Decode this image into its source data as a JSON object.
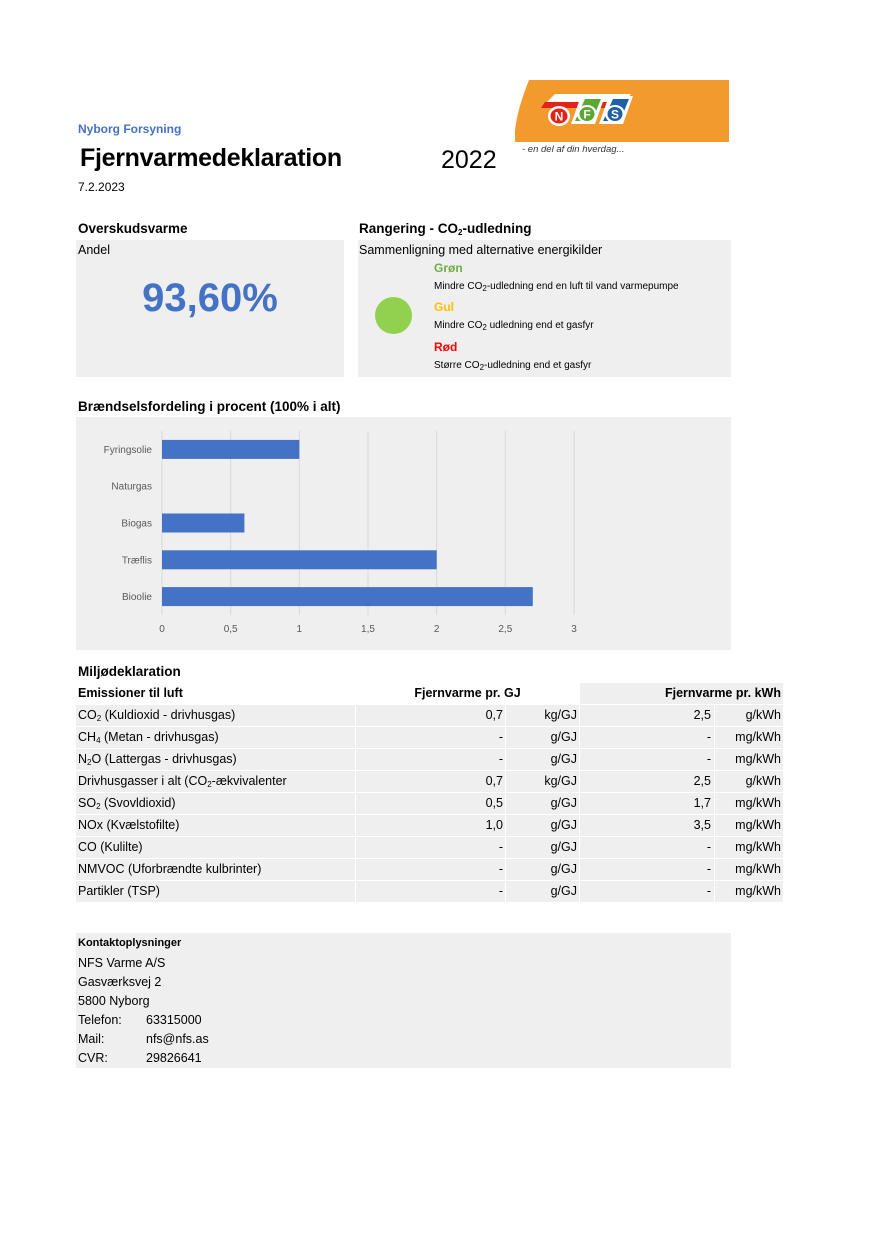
{
  "header": {
    "company": "Nyborg Forsyning",
    "title": "Fjernvarmedeklaration",
    "year": "2022",
    "date": "7.2.2023"
  },
  "logo": {
    "letters": [
      "N",
      "F",
      "S"
    ],
    "tagline": "- en del af din hverdag...",
    "colors": {
      "orange": "#f39a2e",
      "red": "#e2231a",
      "green": "#5aa832",
      "blue": "#1f5fa8"
    }
  },
  "overskud": {
    "heading": "Overskudsvarme",
    "label": "Andel",
    "value": "93,60%"
  },
  "rangering": {
    "heading_pre": "Rangering - CO",
    "heading_sub": "2",
    "heading_post": "-udledning",
    "subheading": "Sammenligning med alternative energikilder",
    "indicator_color": "#92d050",
    "levels": [
      {
        "label": "Grøn",
        "color": "#70ad47",
        "desc_pre": "Mindre CO",
        "desc_sub": "2",
        "desc_post": "-udledning end en luft til vand varmepumpe"
      },
      {
        "label": "Gul",
        "color": "#ffc000",
        "desc_pre": "Mindre CO",
        "desc_sub": "2",
        "desc_post": " udledning end et gasfyr"
      },
      {
        "label": "Rød",
        "color": "#ff0000",
        "desc_pre": "Større CO",
        "desc_sub": "2",
        "desc_post": "-udledning end et gasfyr"
      }
    ]
  },
  "braendsel": {
    "heading": "Brændselsfordeling i procent (100% i alt)"
  },
  "chart_data": {
    "type": "bar",
    "orientation": "horizontal",
    "categories": [
      "Fyringsolie",
      "Naturgas",
      "Biogas",
      "Træflis",
      "Bioolie"
    ],
    "values": [
      1.0,
      0,
      0.6,
      2.0,
      2.7
    ],
    "xlim": [
      0,
      3
    ],
    "xticks": [
      "0",
      "0,5",
      "1",
      "1,5",
      "2",
      "2,5",
      "3"
    ],
    "xtick_values": [
      0,
      0.5,
      1,
      1.5,
      2,
      2.5,
      3
    ],
    "grid": true,
    "bar_color": "#4472c4",
    "grid_color": "#d9d9d9",
    "title": "",
    "xlabel": "",
    "ylabel": ""
  },
  "miljo": {
    "heading": "Miljødeklaration",
    "col_name": "Emissioner til luft",
    "col_gj": "Fjernvarme pr. GJ",
    "col_kwh": "Fjernvarme pr. kWh",
    "rows": [
      {
        "pre": "CO",
        "sub": "2",
        "post": " (Kuldioxid - drivhusgas)",
        "v1": "0,7",
        "u1": "kg/GJ",
        "v2": "2,5",
        "u2": "g/kWh"
      },
      {
        "pre": "CH",
        "sub": "4",
        "post": " (Metan - drivhusgas)",
        "v1": "-",
        "u1": "g/GJ",
        "v2": "-",
        "u2": "mg/kWh"
      },
      {
        "pre": "N",
        "sub": "2",
        "post": "O (Lattergas - drivhusgas)",
        "v1": "-",
        "u1": "g/GJ",
        "v2": "-",
        "u2": "mg/kWh"
      },
      {
        "pre": "Drivhusgasser i alt (CO",
        "sub": "2",
        "post": "-ækvivalenter",
        "v1": "0,7",
        "u1": "kg/GJ",
        "v2": "2,5",
        "u2": "g/kWh"
      },
      {
        "pre": "SO",
        "sub": "2",
        "post": " (Svovldioxid)",
        "v1": "0,5",
        "u1": "g/GJ",
        "v2": "1,7",
        "u2": "mg/kWh"
      },
      {
        "pre": "NOx (Kvælstofilte)",
        "sub": "",
        "post": "",
        "v1": "1,0",
        "u1": "g/GJ",
        "v2": "3,5",
        "u2": "mg/kWh"
      },
      {
        "pre": "CO (Kulilte)",
        "sub": "",
        "post": "",
        "v1": "-",
        "u1": "g/GJ",
        "v2": "-",
        "u2": "mg/kWh"
      },
      {
        "pre": "NMVOC (Uforbrændte kulbrinter)",
        "sub": "",
        "post": "",
        "v1": "-",
        "u1": "g/GJ",
        "v2": "-",
        "u2": "mg/kWh"
      },
      {
        "pre": "Partikler (TSP)",
        "sub": "",
        "post": "",
        "v1": "-",
        "u1": "g/GJ",
        "v2": "-",
        "u2": "mg/kWh"
      }
    ]
  },
  "contact": {
    "title": "Kontaktoplysninger",
    "name": "NFS Varme A/S",
    "street": "Gasværksvej 2",
    "city": "5800 Nyborg",
    "phone_label": "Telefon:",
    "phone": "63315000",
    "mail_label": "Mail:",
    "mail": "nfs@nfs.as",
    "cvr_label": "CVR:",
    "cvr": "29826641"
  }
}
